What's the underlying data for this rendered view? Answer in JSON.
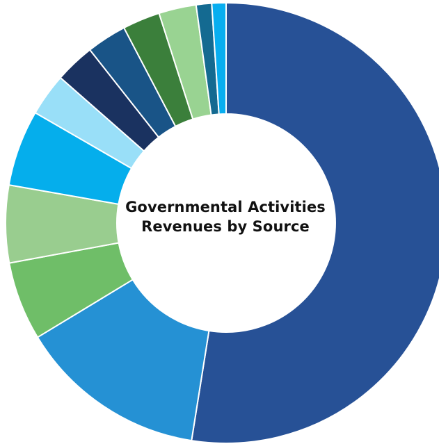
{
  "chart_data": {
    "type": "pie",
    "title": "Governmental Activities Revenues by Source",
    "title_lines": [
      "Governmental Activities",
      "Revenues by Source"
    ],
    "donut": true,
    "legend": "none",
    "data_labels": false,
    "values": [
      55.5,
      14.6,
      6.1,
      6.0,
      5.9,
      3.3,
      3.1,
      3.1,
      2.9,
      2.9,
      1.2,
      1.1
    ],
    "colors": [
      "#275196",
      "#2591d4",
      "#6fbe68",
      "#99cd8f",
      "#05aeec",
      "#99dff8",
      "#1a3260",
      "#195487",
      "#3b7f3b",
      "#99d392",
      "#146a91",
      "#08aef0"
    ],
    "start": "12 o'clock",
    "direction": "clockwise",
    "slice_separator_color": "#ffffff"
  }
}
